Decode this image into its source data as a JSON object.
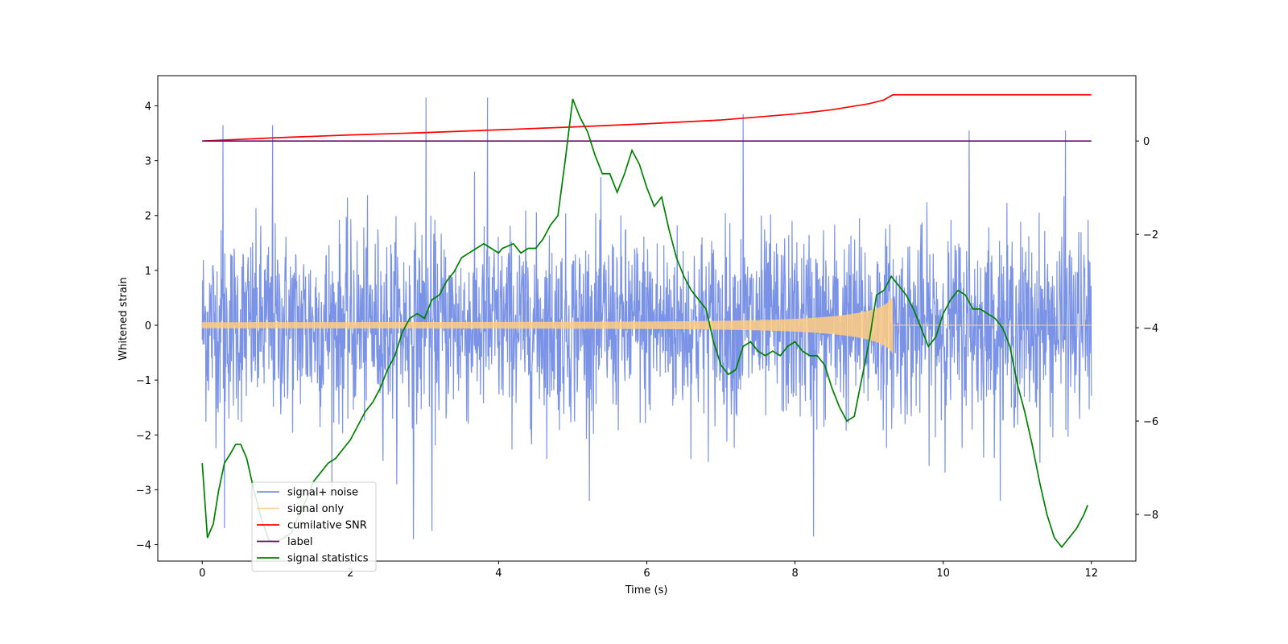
{
  "chart_data": {
    "type": "line",
    "title": "",
    "xlabel": "Time (s)",
    "ylabel": "Whitened strain",
    "y2label": "",
    "xlim": [
      -0.6,
      12.6
    ],
    "ylim": [
      -4.3,
      4.55
    ],
    "y2lim": [
      -9.0,
      1.4
    ],
    "xticks": [
      0,
      2,
      4,
      6,
      8,
      10,
      12
    ],
    "yticks": [
      -4,
      -3,
      -2,
      -1,
      0,
      1,
      2,
      3,
      4
    ],
    "y2ticks": [
      -8,
      -6,
      -4,
      -2,
      0
    ],
    "grid": false,
    "legend_position": "lower-left",
    "series": [
      {
        "name": "signal+ noise",
        "axis": "left",
        "color": "#7b93e6",
        "kind": "noise",
        "x_range": [
          0,
          12
        ],
        "typical_std": 0.95,
        "spikes": [
          {
            "x": 0.28,
            "y": 3.65
          },
          {
            "x": 0.95,
            "y": 3.65
          },
          {
            "x": 3.02,
            "y": 4.15
          },
          {
            "x": 3.85,
            "y": 4.15
          },
          {
            "x": 7.3,
            "y": 3.85
          },
          {
            "x": 10.35,
            "y": 3.55
          },
          {
            "x": 11.65,
            "y": 3.55
          },
          {
            "x": 2.85,
            "y": -3.9
          },
          {
            "x": 8.25,
            "y": -3.85
          },
          {
            "x": 0.3,
            "y": -3.7
          },
          {
            "x": 3.1,
            "y": -3.75
          }
        ]
      },
      {
        "name": "signal only",
        "axis": "left",
        "color": "#ffcc80",
        "kind": "chirp",
        "x_range": [
          0,
          12
        ],
        "merger_time": 9.32,
        "peak_amplitude": 0.52
      },
      {
        "name": "cumilative SNR",
        "axis": "right",
        "color": "#ff0000",
        "kind": "line",
        "x": [
          0,
          1,
          2,
          3,
          4,
          5,
          6,
          7,
          8,
          8.5,
          9.0,
          9.2,
          9.32,
          9.33,
          10,
          11,
          12
        ],
        "y": [
          0.0,
          0.07,
          0.13,
          0.18,
          0.24,
          0.3,
          0.37,
          0.45,
          0.58,
          0.67,
          0.8,
          0.88,
          0.99,
          0.99,
          0.99,
          0.99,
          0.99
        ]
      },
      {
        "name": "label",
        "axis": "right",
        "color": "#6a0d6a",
        "kind": "line",
        "x": [
          0,
          12
        ],
        "y": [
          0.0,
          0.0
        ]
      },
      {
        "name": "signal statistics",
        "axis": "right",
        "color": "#008000",
        "kind": "line",
        "x": [
          0,
          0.07,
          0.15,
          0.22,
          0.3,
          0.38,
          0.45,
          0.52,
          0.6,
          0.7,
          0.8,
          0.9,
          1.0,
          1.1,
          1.2,
          1.3,
          1.4,
          1.5,
          1.6,
          1.7,
          1.8,
          1.9,
          2.0,
          2.1,
          2.2,
          2.3,
          2.4,
          2.5,
          2.6,
          2.7,
          2.8,
          2.9,
          3.0,
          3.1,
          3.2,
          3.3,
          3.4,
          3.5,
          3.6,
          3.7,
          3.8,
          3.9,
          4.0,
          4.05,
          4.2,
          4.3,
          4.4,
          4.5,
          4.6,
          4.7,
          4.8,
          4.9,
          5.0,
          5.1,
          5.2,
          5.3,
          5.4,
          5.5,
          5.6,
          5.7,
          5.8,
          5.9,
          6.0,
          6.1,
          6.2,
          6.3,
          6.4,
          6.5,
          6.6,
          6.7,
          6.8,
          6.9,
          7.0,
          7.1,
          7.2,
          7.3,
          7.4,
          7.5,
          7.6,
          7.7,
          7.8,
          7.9,
          8.0,
          8.1,
          8.2,
          8.3,
          8.4,
          8.5,
          8.6,
          8.7,
          8.8,
          8.9,
          9.0,
          9.1,
          9.2,
          9.3,
          9.4,
          9.5,
          9.6,
          9.7,
          9.8,
          9.9,
          10.0,
          10.1,
          10.2,
          10.3,
          10.4,
          10.5,
          10.6,
          10.7,
          10.8,
          10.9,
          11.0,
          11.1,
          11.2,
          11.3,
          11.4,
          11.5,
          11.6,
          11.7,
          11.8,
          11.9,
          11.95
        ],
        "y": [
          -6.9,
          -8.5,
          -8.2,
          -7.5,
          -6.9,
          -6.7,
          -6.5,
          -6.5,
          -6.8,
          -7.5,
          -8.1,
          -8.55,
          -8.6,
          -8.5,
          -8.4,
          -8.05,
          -7.7,
          -7.3,
          -7.1,
          -6.9,
          -6.8,
          -6.6,
          -6.4,
          -6.1,
          -5.8,
          -5.6,
          -5.3,
          -4.9,
          -4.6,
          -4.1,
          -3.8,
          -3.7,
          -3.8,
          -3.4,
          -3.3,
          -3.0,
          -2.8,
          -2.5,
          -2.4,
          -2.3,
          -2.2,
          -2.3,
          -2.4,
          -2.3,
          -2.2,
          -2.4,
          -2.3,
          -2.3,
          -2.1,
          -1.8,
          -1.6,
          -0.4,
          0.9,
          0.5,
          0.2,
          -0.3,
          -0.7,
          -0.7,
          -1.1,
          -0.7,
          -0.2,
          -0.5,
          -1.0,
          -1.4,
          -1.2,
          -1.9,
          -2.5,
          -2.9,
          -3.2,
          -3.4,
          -3.6,
          -4.3,
          -4.8,
          -5.0,
          -4.9,
          -4.4,
          -4.3,
          -4.5,
          -4.6,
          -4.5,
          -4.6,
          -4.4,
          -4.3,
          -4.5,
          -4.6,
          -4.6,
          -4.8,
          -5.3,
          -5.7,
          -6.0,
          -5.9,
          -5.1,
          -4.3,
          -3.3,
          -3.2,
          -2.9,
          -3.1,
          -3.3,
          -3.6,
          -4.0,
          -4.4,
          -4.2,
          -3.7,
          -3.4,
          -3.2,
          -3.3,
          -3.6,
          -3.6,
          -3.7,
          -3.8,
          -4.0,
          -4.4,
          -5.2,
          -5.8,
          -6.5,
          -7.3,
          -8.0,
          -8.5,
          -8.7,
          -8.5,
          -8.3,
          -8.0,
          -7.8
        ]
      }
    ]
  }
}
